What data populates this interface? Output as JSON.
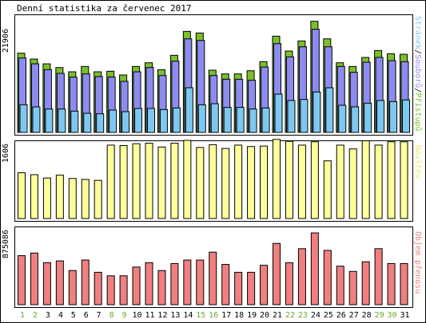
{
  "title": "Denní statistika za červenec 2017",
  "colors": {
    "hits": "#7bbf2b",
    "files": "#8c8cf0",
    "pages": "#7dc8f0",
    "visits": "#ffff99",
    "kbytes": "#f08080",
    "weekend_label": "#6aa82a",
    "weekday_label": "#000000"
  },
  "chart_data": [
    {
      "type": "bar",
      "title": "Denní statistika za červenec 2017",
      "categories": [
        "1",
        "2",
        "3",
        "4",
        "5",
        "6",
        "7",
        "8",
        "9",
        "10",
        "11",
        "12",
        "13",
        "14",
        "15",
        "16",
        "17",
        "18",
        "19",
        "20",
        "21",
        "22",
        "23",
        "24",
        "25",
        "26",
        "27",
        "28",
        "29",
        "30",
        "31"
      ],
      "weekend_days": [
        "1",
        "2",
        "8",
        "9",
        "15",
        "16",
        "22",
        "23",
        "29",
        "30"
      ],
      "ylabel_max": "21906",
      "ylim": [
        0,
        21906
      ],
      "series": [
        {
          "name": "Přístupů",
          "color": "#7bbf2b",
          "values": [
            14900,
            13800,
            12900,
            12200,
            11400,
            12400,
            11400,
            11500,
            10800,
            12400,
            13100,
            11800,
            14500,
            19000,
            18700,
            11700,
            11000,
            11000,
            11600,
            13300,
            18100,
            15300,
            17200,
            20900,
            17600,
            13100,
            12400,
            14100,
            15400,
            14800,
            14700
          ]
        },
        {
          "name": "Souborů",
          "color": "#8c8cf0",
          "values": [
            14000,
            12900,
            11800,
            11100,
            10400,
            11000,
            10500,
            10400,
            9600,
            11400,
            12200,
            10700,
            13400,
            17600,
            17300,
            10700,
            10000,
            10000,
            9800,
            12300,
            16700,
            14200,
            16100,
            19400,
            16100,
            12400,
            11300,
            13200,
            14100,
            13500,
            13300
          ]
        },
        {
          "name": "Stránek",
          "color": "#7dc8f0",
          "values": [
            5200,
            4800,
            4400,
            4400,
            4000,
            3600,
            3500,
            4200,
            3900,
            4500,
            4500,
            4300,
            4600,
            8400,
            5200,
            5400,
            4700,
            4700,
            4400,
            4600,
            7200,
            6000,
            6200,
            7600,
            8400,
            5100,
            4800,
            5500,
            6000,
            5800,
            6100
          ]
        }
      ]
    },
    {
      "type": "bar",
      "categories": [
        "1",
        "2",
        "3",
        "4",
        "5",
        "6",
        "7",
        "8",
        "9",
        "10",
        "11",
        "12",
        "13",
        "14",
        "15",
        "16",
        "17",
        "18",
        "19",
        "20",
        "21",
        "22",
        "23",
        "24",
        "25",
        "26",
        "27",
        "28",
        "29",
        "30",
        "31"
      ],
      "ylabel_max": "1606",
      "ylim": [
        0,
        1606
      ],
      "series": [
        {
          "name": "Návštěv",
          "color": "#ffff99",
          "values": [
            960,
            920,
            850,
            910,
            840,
            820,
            800,
            1540,
            1530,
            1570,
            1580,
            1500,
            1580,
            1640,
            1490,
            1550,
            1470,
            1540,
            1510,
            1520,
            1660,
            1620,
            1540,
            1610,
            1210,
            1540,
            1460,
            1630,
            1540,
            1610,
            1610
          ]
        }
      ]
    },
    {
      "type": "bar",
      "categories": [
        "1",
        "2",
        "3",
        "4",
        "5",
        "6",
        "7",
        "8",
        "9",
        "10",
        "11",
        "12",
        "13",
        "14",
        "15",
        "16",
        "17",
        "18",
        "19",
        "20",
        "21",
        "22",
        "23",
        "24",
        "25",
        "26",
        "27",
        "28",
        "29",
        "30",
        "31"
      ],
      "ylabel_max": "875086",
      "ylim": [
        0,
        875086
      ],
      "series": [
        {
          "name": "Objem přenosu",
          "color": "#f08080",
          "values": [
            560000,
            590000,
            480000,
            500000,
            390000,
            510000,
            370000,
            330000,
            330000,
            430000,
            480000,
            390000,
            470000,
            510000,
            510000,
            600000,
            460000,
            370000,
            370000,
            450000,
            700000,
            480000,
            640000,
            820000,
            620000,
            440000,
            380000,
            490000,
            640000,
            470000,
            470000
          ]
        }
      ]
    }
  ],
  "right_labels": {
    "top": [
      {
        "text": "Stránek",
        "color": "#7dc8f0"
      },
      {
        "text": "/",
        "color": "#000000"
      },
      {
        "text": "Souborů",
        "color": "#8c8cf0"
      },
      {
        "text": "/",
        "color": "#000000"
      },
      {
        "text": "Přístupů",
        "color": "#7bbf2b"
      }
    ],
    "mid": {
      "text": "Návštěv",
      "color": "#e8e870"
    },
    "bottom": {
      "text": "Objem přenosu",
      "color": "#f08080"
    }
  }
}
